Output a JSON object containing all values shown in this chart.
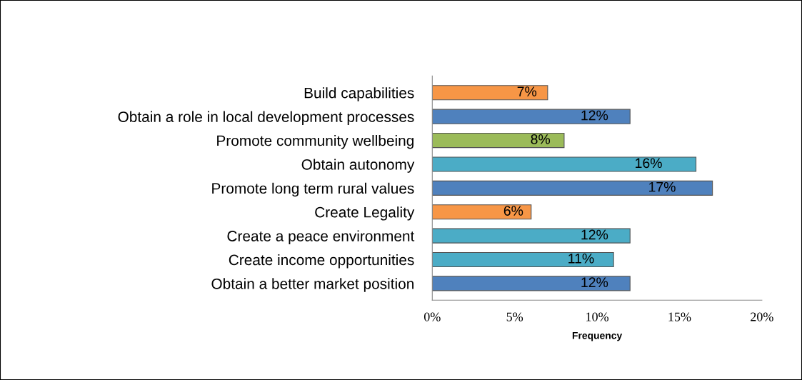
{
  "chart_data": {
    "type": "bar",
    "orientation": "horizontal",
    "xlabel": "Frequency",
    "categories": [
      "Build capabilities",
      "Obtain a role in local development processes",
      "Promote community wellbeing",
      "Obtain autonomy",
      "Promote long term rural values",
      "Create Legality",
      "Create a peace environment",
      "Create income opportunities",
      "Obtain a better market position"
    ],
    "values": [
      7,
      12,
      8,
      16,
      17,
      6,
      12,
      11,
      12
    ],
    "colors": [
      "#f79646",
      "#4f81bd",
      "#9bbb59",
      "#4bacc6",
      "#4f81bd",
      "#f79646",
      "#4bacc6",
      "#4bacc6",
      "#4f81bd"
    ],
    "value_labels": [
      "7%",
      "12%",
      "8%",
      "16%",
      "17%",
      "6%",
      "12%",
      "11%",
      "12%"
    ],
    "xlim": [
      0,
      20
    ],
    "xticks": [
      {
        "value": 0,
        "label": "0%"
      },
      {
        "value": 5,
        "label": "5%"
      },
      {
        "value": 10,
        "label": "10%"
      },
      {
        "value": 15,
        "label": "15%"
      },
      {
        "value": 20,
        "label": "20%"
      }
    ],
    "grid": false
  }
}
